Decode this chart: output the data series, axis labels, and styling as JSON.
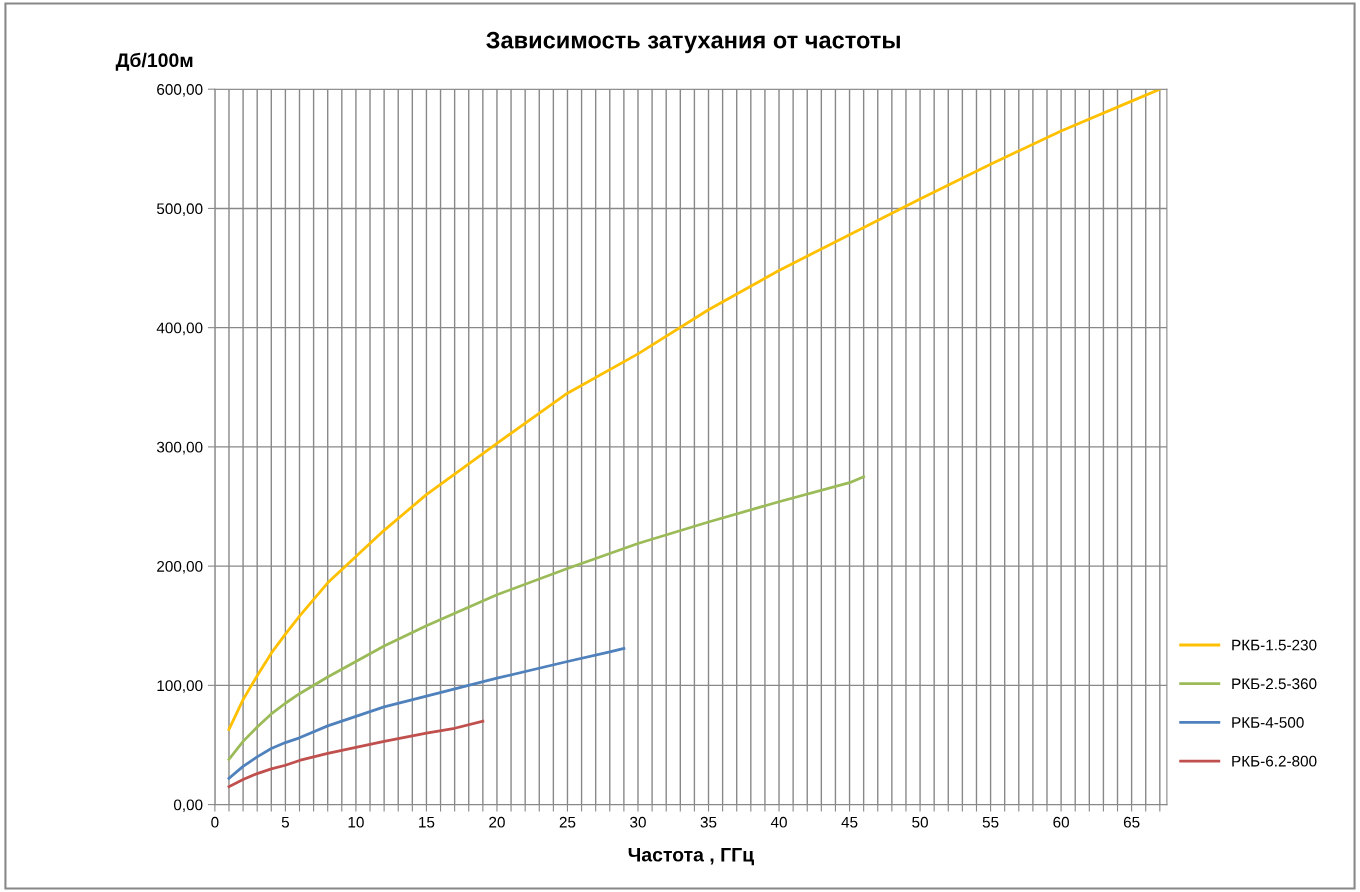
{
  "chart_data": {
    "type": "line",
    "title": "Зависимость затухания от частоты",
    "xlabel": "Частота , ГГц",
    "ylabel": "Дб/100м",
    "xlim": [
      0,
      67.5
    ],
    "ylim": [
      0,
      600
    ],
    "xticks": [
      0,
      {
        "value": 1,
        "label": null
      },
      {
        "value": 2,
        "label": null
      },
      {
        "value": 3,
        "label": null
      },
      {
        "value": 4,
        "label": null
      },
      5,
      {
        "value": 6,
        "label": null
      },
      {
        "value": 7,
        "label": null
      },
      {
        "value": 8,
        "label": null
      },
      {
        "value": 9,
        "label": null
      },
      10,
      {
        "value": 11,
        "label": null
      },
      {
        "value": 12,
        "label": null
      },
      {
        "value": 13,
        "label": null
      },
      {
        "value": 14,
        "label": null
      },
      15,
      {
        "value": 16,
        "label": null
      },
      {
        "value": 17,
        "label": null
      },
      {
        "value": 18,
        "label": null
      },
      {
        "value": 19,
        "label": null
      },
      20,
      {
        "value": 21,
        "label": null
      },
      {
        "value": 22,
        "label": null
      },
      {
        "value": 23,
        "label": null
      },
      {
        "value": 24,
        "label": null
      },
      25,
      {
        "value": 26,
        "label": null
      },
      {
        "value": 27,
        "label": null
      },
      {
        "value": 28,
        "label": null
      },
      {
        "value": 29,
        "label": null
      },
      30,
      {
        "value": 31,
        "label": null
      },
      {
        "value": 32,
        "label": null
      },
      {
        "value": 33,
        "label": null
      },
      {
        "value": 34,
        "label": null
      },
      35,
      {
        "value": 36,
        "label": null
      },
      {
        "value": 37,
        "label": null
      },
      {
        "value": 38,
        "label": null
      },
      {
        "value": 39,
        "label": null
      },
      40,
      {
        "value": 41,
        "label": null
      },
      {
        "value": 42,
        "label": null
      },
      {
        "value": 43,
        "label": null
      },
      {
        "value": 44,
        "label": null
      },
      45,
      {
        "value": 46,
        "label": null
      },
      {
        "value": 47,
        "label": null
      },
      {
        "value": 48,
        "label": null
      },
      {
        "value": 49,
        "label": null
      },
      50,
      {
        "value": 51,
        "label": null
      },
      {
        "value": 52,
        "label": null
      },
      {
        "value": 53,
        "label": null
      },
      {
        "value": 54,
        "label": null
      },
      55,
      {
        "value": 56,
        "label": null
      },
      {
        "value": 57,
        "label": null
      },
      {
        "value": 58,
        "label": null
      },
      {
        "value": 59,
        "label": null
      },
      60,
      {
        "value": 61,
        "label": null
      },
      {
        "value": 62,
        "label": null
      },
      {
        "value": 63,
        "label": null
      },
      {
        "value": 64,
        "label": null
      },
      65,
      {
        "value": 66,
        "label": null
      },
      {
        "value": 67,
        "label": null
      }
    ],
    "yticks": [
      {
        "value": 0,
        "label": "0,00"
      },
      {
        "value": 100,
        "label": "100,00"
      },
      {
        "value": 200,
        "label": "200,00"
      },
      {
        "value": 300,
        "label": "300,00"
      },
      {
        "value": 400,
        "label": "400,00"
      },
      {
        "value": 500,
        "label": "500,00"
      },
      {
        "value": 600,
        "label": "600,00"
      }
    ],
    "grid": true,
    "legend": "right",
    "marker": "none",
    "line_style": "solid",
    "series": [
      {
        "name": "РКБ-1.5-230",
        "color": "#ffc000",
        "x": [
          1,
          2,
          3,
          4,
          5,
          6,
          8,
          10,
          12,
          15,
          20,
          25,
          30,
          35,
          40,
          45,
          50,
          55,
          60,
          65,
          67
        ],
        "values": [
          63,
          88,
          108,
          127,
          143,
          158,
          186,
          208,
          230,
          260,
          303,
          345,
          378,
          415,
          448,
          478,
          508,
          537,
          565,
          590,
          600
        ]
      },
      {
        "name": "РКБ-2.5-360",
        "color": "#9bbb59",
        "x": [
          1,
          2,
          3,
          4,
          5,
          6,
          8,
          10,
          12,
          15,
          20,
          25,
          30,
          35,
          40,
          45,
          46
        ],
        "values": [
          38,
          53,
          65,
          76,
          85,
          93,
          107,
          120,
          133,
          150,
          176,
          198,
          219,
          237,
          254,
          270,
          275
        ]
      },
      {
        "name": "РКБ-4-500",
        "color": "#4f81bd",
        "x": [
          1,
          2,
          3,
          4,
          5,
          6,
          8,
          10,
          12,
          15,
          20,
          25,
          28,
          29
        ],
        "values": [
          22,
          32,
          40,
          47,
          52,
          56,
          66,
          74,
          82,
          91,
          106,
          120,
          128,
          131
        ]
      },
      {
        "name": "РКБ-6.2-800",
        "color": "#c0504d",
        "x": [
          1,
          2,
          3,
          4,
          5,
          6,
          8,
          10,
          12,
          15,
          17,
          19
        ],
        "values": [
          15,
          21,
          26,
          30,
          33,
          37,
          43,
          48,
          53,
          60,
          64,
          70
        ]
      }
    ]
  }
}
